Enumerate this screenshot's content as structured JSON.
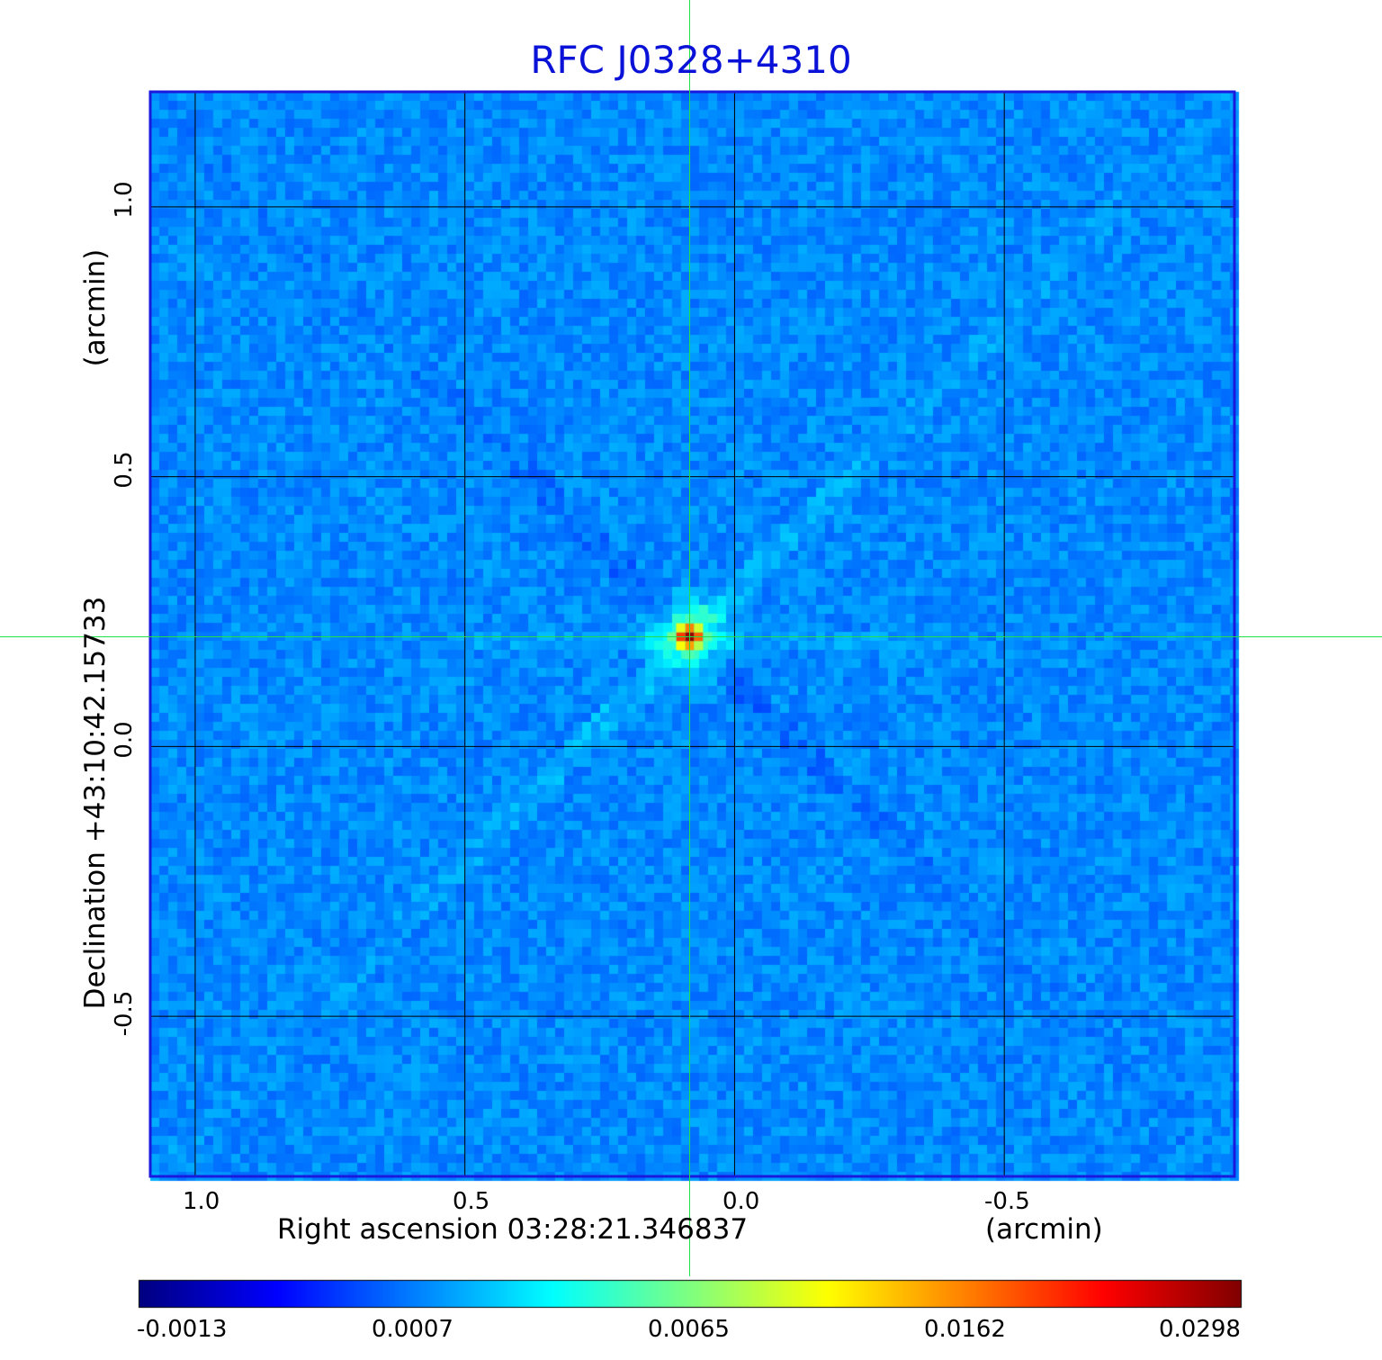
{
  "chart_data": {
    "type": "heatmap",
    "title": "RFC J0328+4310",
    "xlabel": "Right ascension  03:28:21.346837",
    "xunit": "(arcmin)",
    "ylabel": "Declination  +43:10:42.15733",
    "yunit": "(arcmin)",
    "xlim": [
      1.0833,
      -0.9267
    ],
    "ylim": [
      -0.7967,
      1.2133
    ],
    "x_ticks": [
      "1.0",
      "0.5",
      "0.0",
      "-0.5"
    ],
    "x_tick_values": [
      1.0,
      0.5,
      0.0,
      -0.5
    ],
    "y_ticks": [
      "1.0",
      "0.5",
      "0.0",
      "-0.5"
    ],
    "y_tick_values": [
      1.0,
      0.5,
      0.0,
      -0.5
    ],
    "grid": true,
    "crosshair": [
      0.0833,
      0.2033
    ],
    "peak": {
      "x": 0.0833,
      "y": 0.2033,
      "value": 0.0298
    },
    "colorbar": {
      "colormap": "jet",
      "labels": [
        "-0.0013",
        "0.0007",
        "0.0065",
        "0.0162",
        "0.0298"
      ],
      "values": [
        -0.0013,
        0.0007,
        0.0065,
        0.0162,
        0.0298
      ]
    }
  },
  "colors": {
    "title": "#0a12d8",
    "frame": "#1a1adf",
    "grid": "#000000",
    "crosshair": "#22e04a",
    "background": "#1f6ef7"
  }
}
